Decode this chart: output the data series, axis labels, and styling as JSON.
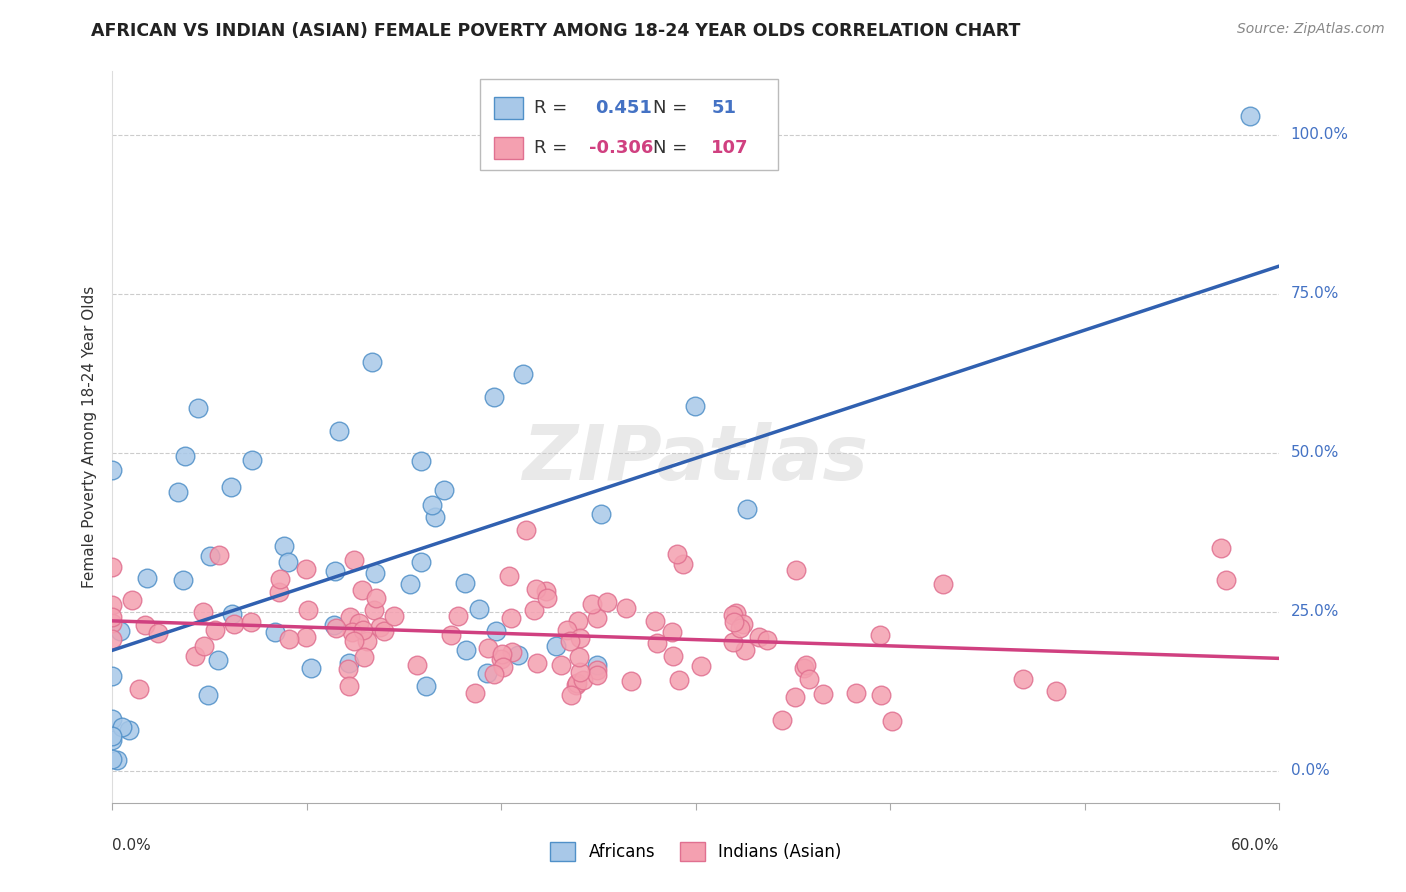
{
  "title": "AFRICAN VS INDIAN (ASIAN) FEMALE POVERTY AMONG 18-24 YEAR OLDS CORRELATION CHART",
  "source": "Source: ZipAtlas.com",
  "ylabel": "Female Poverty Among 18-24 Year Olds",
  "xlim": [
    0.0,
    0.6
  ],
  "ylim": [
    -0.05,
    1.1
  ],
  "african_R": 0.451,
  "african_N": 51,
  "indian_R": -0.306,
  "indian_N": 107,
  "african_color": "#a8c8e8",
  "indian_color": "#f4a0b0",
  "african_edge_color": "#5090c8",
  "indian_edge_color": "#e07090",
  "african_line_color": "#3060b0",
  "indian_line_color": "#d04080",
  "watermark": "ZIPatlas",
  "y_tick_vals": [
    0.0,
    0.25,
    0.5,
    0.75,
    1.0
  ],
  "y_tick_labels_right": [
    "0.0%",
    "25.0%",
    "50.0%",
    "75.0%",
    "100.0%"
  ]
}
